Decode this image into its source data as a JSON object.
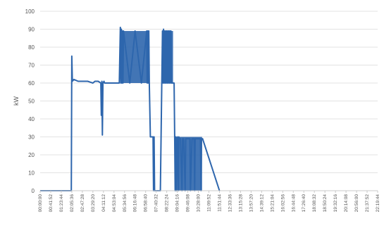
{
  "chart_data": {
    "type": "line",
    "title": "",
    "xlabel": "",
    "ylabel": "kW",
    "ylim": [
      0,
      100
    ],
    "yticks": [
      0,
      10,
      20,
      30,
      40,
      50,
      60,
      70,
      80,
      90,
      100
    ],
    "grid": true,
    "legend": "none",
    "colors": {
      "series": "#2e66ad",
      "grid": "#e3e3e3",
      "text": "#555555",
      "axis": "#c8c8c8"
    },
    "x_tick_labels": [
      "00:00:00",
      "00:41:52",
      "01:23:44",
      "02:05:36",
      "02:47:28",
      "03:29:20",
      "04:11:12",
      "04:53:04",
      "05:34:56",
      "06:16:48",
      "06:58:40",
      "07:40:32",
      "08:22:24",
      "09:04:16",
      "09:46:08",
      "10:28:00",
      "11:09:52",
      "11:51:44",
      "12:33:36",
      "13:15:28",
      "13:57:20",
      "14:39:12",
      "15:21:04",
      "16:02:56",
      "16:44:48",
      "17:26:40",
      "18:08:32",
      "18:50:24",
      "19:32:16",
      "20:14:08",
      "20:56:00",
      "21:37:52",
      "22:19:44"
    ],
    "series": [
      {
        "x": [
          0,
          2.95,
          3.0,
          3.05,
          3.2,
          3.6,
          4.0,
          4.5,
          5.0,
          5.2,
          5.5,
          5.75,
          5.8,
          5.85,
          5.9,
          5.95,
          6.05,
          6.1,
          6.3,
          6.7,
          7.1,
          7.3,
          7.5,
          7.6,
          7.65,
          7.7,
          7.75,
          7.8,
          7.85,
          7.9,
          8.5,
          9.0,
          9.6,
          10.1,
          10.15,
          10.2,
          10.25,
          10.3,
          10.35,
          10.45,
          10.7,
          10.75,
          10.8,
          10.85,
          10.9,
          11.4,
          11.6,
          11.65,
          11.7,
          11.75,
          11.8,
          11.85,
          11.9,
          11.95,
          12.0,
          12.05,
          12.1,
          12.15,
          12.2,
          12.25,
          12.3,
          12.35,
          12.4,
          12.45,
          12.55,
          12.7,
          12.75,
          12.8,
          12.85,
          12.9,
          13.0,
          13.1,
          13.15,
          13.2,
          13.3,
          13.45,
          13.5,
          13.6,
          13.75,
          13.8,
          13.85,
          13.95,
          14.2,
          14.25,
          14.4,
          14.45,
          14.5,
          14.6,
          14.65,
          14.7,
          15.2,
          15.25,
          15.3,
          15.4,
          17.0
        ],
        "values": [
          0,
          0,
          75,
          61,
          62,
          61,
          61,
          61,
          60,
          61,
          61,
          60,
          42,
          61,
          31,
          60,
          61,
          60,
          60,
          60,
          60,
          60,
          60,
          91,
          60,
          90,
          60,
          89,
          60,
          89,
          60,
          89,
          60,
          89,
          60,
          89,
          60,
          89,
          60,
          30,
          30,
          0,
          30,
          0,
          0,
          0,
          89,
          60,
          90,
          60,
          89,
          60,
          89,
          60,
          89,
          60,
          89,
          60,
          89,
          60,
          89,
          60,
          89,
          60,
          60,
          60,
          31,
          0,
          30,
          0,
          30,
          0,
          30,
          29,
          29,
          0,
          29,
          29,
          0,
          29,
          29,
          29,
          29,
          0,
          29,
          29,
          29,
          29,
          0,
          29,
          29,
          0,
          29,
          29,
          0
        ]
      }
    ]
  }
}
